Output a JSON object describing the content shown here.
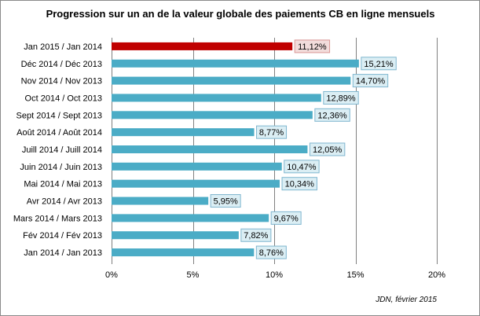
{
  "chart_data": {
    "type": "bar",
    "orientation": "horizontal",
    "title": "Progression sur un an de la valeur globale des paiements CB en ligne mensuels",
    "categories": [
      "Jan 2015 / Jan 2014",
      "Déc 2014 / Déc 2013",
      "Nov 2014 / Nov 2013",
      "Oct 2014 / Oct 2013",
      "Sept 2014 / Sept 2013",
      "Août 2014 / Août 2014",
      "Juill 2014 / Juill 2014",
      "Juin 2014 / Juin 2013",
      "Mai 2014 / Mai 2013",
      "Avr 2014 / Avr 2013",
      "Mars 2014 / Mars 2013",
      "Fév 2014 / Fév 2013",
      "Jan 2014 / Jan 2013"
    ],
    "values": [
      11.12,
      15.21,
      14.7,
      12.89,
      12.36,
      8.77,
      12.05,
      10.47,
      10.34,
      5.95,
      9.67,
      7.82,
      8.76
    ],
    "value_labels": [
      "11,12%",
      "15,21%",
      "14,70%",
      "12,89%",
      "12,36%",
      "8,77%",
      "12,05%",
      "10,47%",
      "10,34%",
      "5,95%",
      "9,67%",
      "7,82%",
      "8,76%"
    ],
    "highlight_index": 0,
    "xlim": [
      0,
      20
    ],
    "xticks": [
      0,
      5,
      10,
      15,
      20
    ],
    "xtick_labels": [
      "0%",
      "5%",
      "10%",
      "15%",
      "20%"
    ],
    "xlabel": "",
    "ylabel": "",
    "grid": "vertical",
    "source": "JDN, février 2015",
    "colors": {
      "bar": "#4bacc6",
      "bar_highlight": "#c00000",
      "label_bg": "#dbeef4",
      "label_border": "#7fb6cf",
      "label_bg_highlight": "#f2dcdb",
      "label_border_highlight": "#d99694",
      "grid": "#808080"
    }
  }
}
